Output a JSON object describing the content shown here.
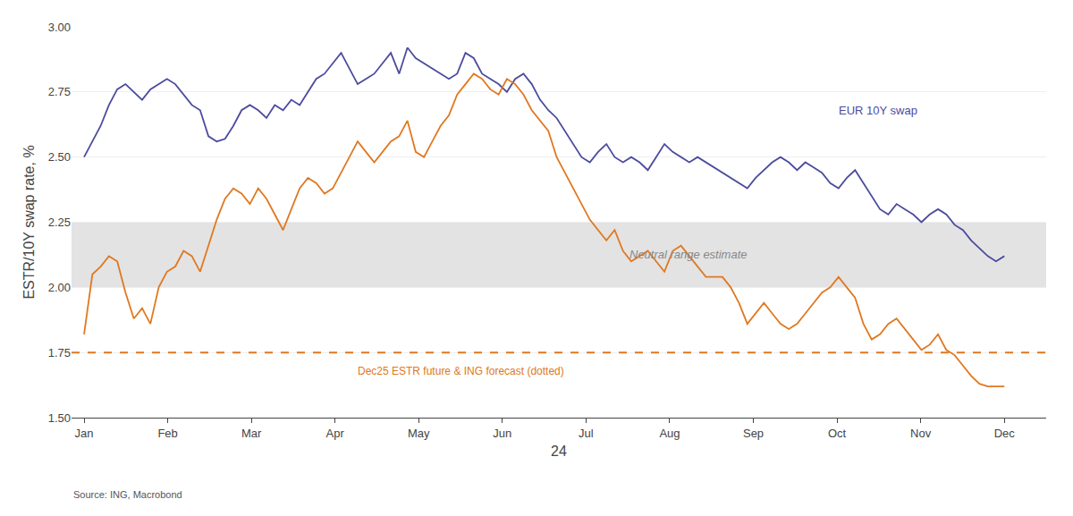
{
  "chart_data": {
    "type": "line",
    "x_label": "24",
    "y_label": "ESTR/10Y swap rate, %",
    "source": "Source: ING, Macrobond",
    "grid": "y",
    "xlim": [
      -0.15,
      11.5
    ],
    "xticks": [
      {
        "value": 0,
        "label": "Jan"
      },
      {
        "value": 1,
        "label": "Feb"
      },
      {
        "value": 2,
        "label": "Mar"
      },
      {
        "value": 3,
        "label": "Apr"
      },
      {
        "value": 4,
        "label": "May"
      },
      {
        "value": 5,
        "label": "Jun"
      },
      {
        "value": 6,
        "label": "Jul"
      },
      {
        "value": 7,
        "label": "Aug"
      },
      {
        "value": 8,
        "label": "Sep"
      },
      {
        "value": 9,
        "label": "Oct"
      },
      {
        "value": 10,
        "label": "Nov"
      },
      {
        "value": 11,
        "label": "Dec"
      }
    ],
    "ylim": [
      1.5,
      3.0
    ],
    "yticks": [
      {
        "value": 1.5,
        "label": "1.50"
      },
      {
        "value": 1.75,
        "label": "1.75"
      },
      {
        "value": 2.0,
        "label": "2.00"
      },
      {
        "value": 2.25,
        "label": "2.25"
      },
      {
        "value": 2.5,
        "label": "2.50"
      },
      {
        "value": 2.75,
        "label": "2.75"
      },
      {
        "value": 3.0,
        "label": "3.00"
      }
    ],
    "bands": [
      {
        "low": 2.0,
        "high": 2.25,
        "label": "Neutral range estimate",
        "color": "#CCCCCC"
      }
    ],
    "hlines": [
      {
        "y": 1.75,
        "label": "Dec25 ESTR future & ING forecast (dotted)",
        "color": "#E07820",
        "line_style": "dashed"
      }
    ],
    "x": [
      0,
      0.0991,
      0.1982,
      0.2973,
      0.3964,
      0.4955,
      0.5946,
      0.6937,
      0.7928,
      0.8919,
      0.991,
      1.0901,
      1.1892,
      1.2883,
      1.3874,
      1.4865,
      1.5856,
      1.6847,
      1.7838,
      1.8829,
      1.982,
      2.0811,
      2.1802,
      2.2793,
      2.3784,
      2.4775,
      2.5766,
      2.6757,
      2.7748,
      2.8739,
      2.973,
      3.0721,
      3.1712,
      3.2703,
      3.3694,
      3.4685,
      3.5676,
      3.6667,
      3.7658,
      3.8649,
      3.964,
      4.0631,
      4.1622,
      4.2613,
      4.3604,
      4.4595,
      4.5586,
      4.6577,
      4.7568,
      4.8559,
      4.955,
      5.0541,
      5.1532,
      5.2523,
      5.3514,
      5.4505,
      5.5495,
      5.6486,
      5.7477,
      5.8468,
      5.9459,
      6.045,
      6.1441,
      6.2432,
      6.3423,
      6.4414,
      6.5405,
      6.6396,
      6.7387,
      6.8378,
      6.9369,
      7.036,
      7.1351,
      7.2342,
      7.3333,
      7.4324,
      7.5315,
      7.6306,
      7.7297,
      7.8288,
      7.9279,
      8.027,
      8.1261,
      8.2252,
      8.3243,
      8.4234,
      8.5225,
      8.6216,
      8.7207,
      8.8198,
      8.9189,
      9.018,
      9.1171,
      9.2162,
      9.3153,
      9.4144,
      9.5135,
      9.6126,
      9.7117,
      9.8108,
      9.9099,
      10.009,
      10.1081,
      10.2072,
      10.3063,
      10.4054,
      10.5045,
      10.6036,
      10.7027,
      10.8018,
      10.9009,
      11
    ],
    "series": [
      {
        "name": "EUR 10Y swap",
        "color": "#4B4B9F",
        "values": [
          2.5,
          2.56,
          2.62,
          2.7,
          2.76,
          2.78,
          2.75,
          2.72,
          2.76,
          2.78,
          2.8,
          2.78,
          2.74,
          2.7,
          2.68,
          2.58,
          2.56,
          2.57,
          2.62,
          2.68,
          2.7,
          2.68,
          2.65,
          2.7,
          2.68,
          2.72,
          2.7,
          2.75,
          2.8,
          2.82,
          2.86,
          2.9,
          2.84,
          2.78,
          2.8,
          2.82,
          2.86,
          2.9,
          2.82,
          2.92,
          2.88,
          2.86,
          2.84,
          2.82,
          2.8,
          2.82,
          2.9,
          2.88,
          2.82,
          2.8,
          2.78,
          2.75,
          2.8,
          2.82,
          2.78,
          2.72,
          2.68,
          2.65,
          2.6,
          2.55,
          2.5,
          2.48,
          2.52,
          2.55,
          2.5,
          2.48,
          2.5,
          2.48,
          2.45,
          2.5,
          2.55,
          2.52,
          2.5,
          2.48,
          2.5,
          2.48,
          2.46,
          2.44,
          2.42,
          2.4,
          2.38,
          2.42,
          2.45,
          2.48,
          2.5,
          2.48,
          2.45,
          2.48,
          2.46,
          2.44,
          2.4,
          2.38,
          2.42,
          2.45,
          2.4,
          2.35,
          2.3,
          2.28,
          2.32,
          2.3,
          2.28,
          2.25,
          2.28,
          2.3,
          2.28,
          2.24,
          2.22,
          2.18,
          2.15,
          2.12,
          2.1,
          2.12
        ]
      },
      {
        "color": "#E07820",
        "values": [
          1.82,
          2.05,
          2.08,
          2.12,
          2.1,
          1.98,
          1.88,
          1.92,
          1.86,
          2.0,
          2.06,
          2.08,
          2.14,
          2.12,
          2.06,
          2.16,
          2.26,
          2.34,
          2.38,
          2.36,
          2.32,
          2.38,
          2.34,
          2.28,
          2.22,
          2.3,
          2.38,
          2.42,
          2.4,
          2.36,
          2.38,
          2.44,
          2.5,
          2.56,
          2.52,
          2.48,
          2.52,
          2.56,
          2.58,
          2.64,
          2.52,
          2.5,
          2.56,
          2.62,
          2.66,
          2.74,
          2.78,
          2.82,
          2.8,
          2.76,
          2.74,
          2.8,
          2.78,
          2.74,
          2.68,
          2.64,
          2.6,
          2.5,
          2.44,
          2.38,
          2.32,
          2.26,
          2.22,
          2.18,
          2.22,
          2.14,
          2.1,
          2.12,
          2.14,
          2.1,
          2.06,
          2.14,
          2.16,
          2.12,
          2.08,
          2.04,
          2.04,
          2.04,
          2.0,
          1.94,
          1.86,
          1.9,
          1.94,
          1.9,
          1.86,
          1.84,
          1.86,
          1.9,
          1.94,
          1.98,
          2.0,
          2.04,
          2.0,
          1.96,
          1.86,
          1.8,
          1.82,
          1.86,
          1.88,
          1.84,
          1.8,
          1.76,
          1.78,
          1.82,
          1.76,
          1.74,
          1.7,
          1.66,
          1.63,
          1.62,
          1.62,
          1.62
        ]
      }
    ]
  }
}
